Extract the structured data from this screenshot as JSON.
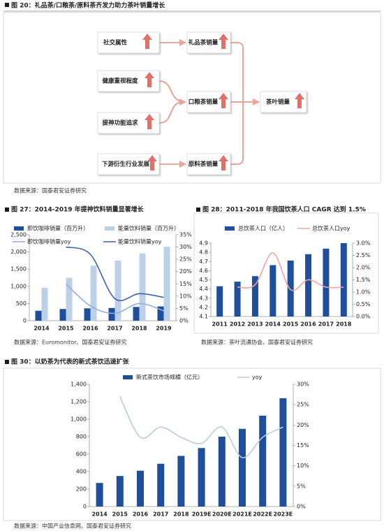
{
  "diagram": {
    "title": "图 20：礼品茶/口粮茶/原料茶齐发力助力茶叶销量增长",
    "nodes": [
      "社交属性",
      "健康重视程度",
      "提神功能追求",
      "下游衍生行业发展",
      "礼品茶销量",
      "口粮茶销量",
      "原料茶销量",
      "茶叶销量"
    ],
    "source": "数据来源：国泰君安证券研究"
  },
  "chart_data": [
    {
      "type": "bar",
      "title": "图 27：2014-2019 年提神饮料销量显著增长",
      "source": "数据来源：Euromonitor、国泰君安证券研究",
      "categories": [
        "2014",
        "2015",
        "2016",
        "2017",
        "2018",
        "2019"
      ],
      "series": [
        {
          "name": "即饮咖啡销量（百万升）",
          "type": "bar",
          "color": "#1f4e9a",
          "values": [
            290,
            340,
            360,
            370,
            400,
            415
          ]
        },
        {
          "name": "能量饮料销量（百万升）",
          "type": "bar",
          "color": "#bcd0e8",
          "values": [
            960,
            1250,
            1600,
            1750,
            1960,
            2150
          ]
        },
        {
          "name": "即饮咖啡销量yoy",
          "type": "line",
          "axis": "y2",
          "color": "#8fb0dc",
          "values": [
            null,
            15,
            6,
            3,
            7,
            4
          ]
        },
        {
          "name": "能量饮料销量yoy",
          "type": "line",
          "axis": "y2",
          "color": "#3c64a8",
          "values": [
            null,
            30,
            27,
            9,
            11,
            9.5
          ]
        }
      ],
      "ylim": [
        0,
        2500
      ],
      "yticks": [
        0,
        500,
        {
          "value": 1000,
          "label": "1,000"
        },
        {
          "value": 1500,
          "label": "1,500"
        },
        {
          "value": 2000,
          "label": "2,000"
        },
        {
          "value": 2500,
          "label": "2,500"
        }
      ],
      "y2lim": [
        0,
        35
      ],
      "y2ticks": [
        {
          "value": 0,
          "label": "0%"
        },
        {
          "value": 5,
          "label": "5%"
        },
        {
          "value": 10,
          "label": "10%"
        },
        {
          "value": 15,
          "label": "15%"
        },
        {
          "value": 20,
          "label": "20%"
        },
        {
          "value": 25,
          "label": "25%"
        },
        {
          "value": 30,
          "label": "30%"
        },
        {
          "value": 35,
          "label": "35%"
        }
      ]
    },
    {
      "type": "bar",
      "title": "图 28：2011-2018 年我国饮茶人口 CAGR 达到 1.5%",
      "source": "数据来源：茶叶流通协会、国泰君安证券研究",
      "categories": [
        "2011",
        "2012",
        "2013",
        "2014",
        "2015",
        "2016",
        "2017",
        "2018"
      ],
      "series": [
        {
          "name": "总饮茶人口（亿人）",
          "type": "bar",
          "color": "#1f4e9a",
          "values": [
            4.43,
            4.48,
            4.54,
            4.66,
            4.71,
            4.78,
            4.84,
            4.9
          ]
        },
        {
          "name": "总饮茶人口yoy",
          "type": "line",
          "axis": "y2",
          "color": "#f2a3a3",
          "values": [
            null,
            1.2,
            1.3,
            2.6,
            1.1,
            1.5,
            1.2,
            1.2
          ]
        }
      ],
      "ylim": [
        4.1,
        4.9
      ],
      "yticks": [
        4.1,
        4.2,
        4.3,
        4.4,
        4.5,
        4.6,
        4.7,
        4.8,
        4.9
      ],
      "y2lim": [
        0,
        3
      ],
      "y2ticks": [
        {
          "value": 0,
          "label": "0.0%"
        },
        {
          "value": 0.5,
          "label": "0.5%"
        },
        {
          "value": 1,
          "label": "1.0%"
        },
        {
          "value": 1.5,
          "label": "1.5%"
        },
        {
          "value": 2,
          "label": "2.0%"
        },
        {
          "value": 2.5,
          "label": "2.5%"
        },
        {
          "value": 3,
          "label": "3.0%"
        }
      ]
    },
    {
      "type": "bar",
      "title": "图 30：以奶茶为代表的新式茶饮迅速扩张",
      "source": "数据来源：中国产业信息网、国泰君安证券研究",
      "categories": [
        "2014",
        "2015",
        "2016",
        "2017",
        "2018",
        "2019E",
        "2020E",
        "2021E",
        "2022E",
        "2023E"
      ],
      "series": [
        {
          "name": "新式茶饮市场规模（亿元）",
          "type": "bar",
          "color": "#1f4e9a",
          "values": [
            270,
            350,
            410,
            490,
            580,
            670,
            800,
            890,
            1040,
            1240
          ]
        },
        {
          "name": "yoy",
          "type": "line",
          "axis": "y2",
          "color": "#b8cce4",
          "values": [
            null,
            27,
            17,
            19.5,
            17,
            15.5,
            19.5,
            12,
            17,
            19.5
          ]
        }
      ],
      "ylim": [
        0,
        1400
      ],
      "yticks": [
        0,
        200,
        400,
        600,
        800,
        {
          "value": 1000,
          "label": "1,000"
        },
        {
          "value": 1200,
          "label": "1,200"
        },
        {
          "value": 1400,
          "label": "1,400"
        }
      ],
      "y2lim": [
        0,
        30
      ],
      "y2ticks": [
        {
          "value": 0,
          "label": "0%"
        },
        {
          "value": 5,
          "label": "5%"
        },
        {
          "value": 10,
          "label": "10%"
        },
        {
          "value": 15,
          "label": "15%"
        },
        {
          "value": 20,
          "label": "20%"
        },
        {
          "value": 25,
          "label": "25%"
        },
        {
          "value": 30,
          "label": "30%"
        }
      ]
    }
  ]
}
